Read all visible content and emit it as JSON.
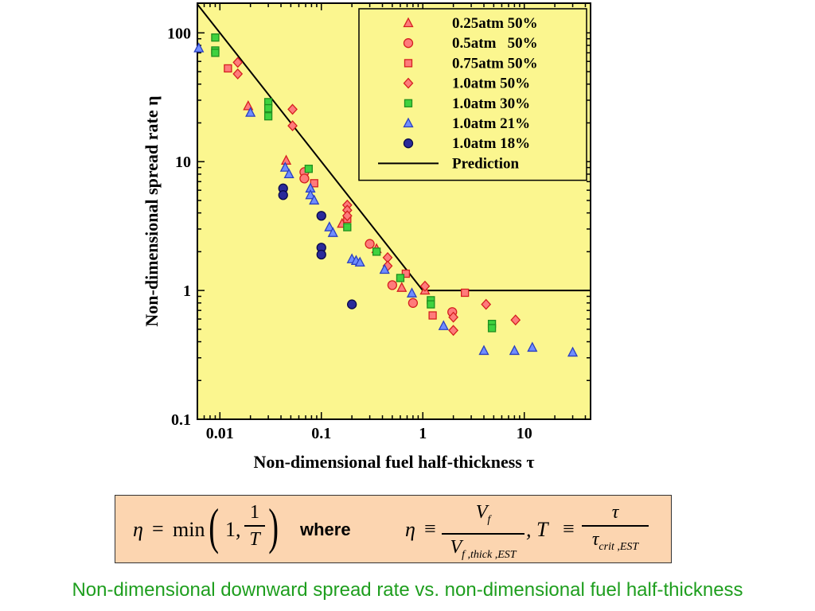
{
  "chart_data": {
    "type": "scatter",
    "xscale": "log",
    "yscale": "log",
    "xlim": [
      0.006,
      45
    ],
    "ylim": [
      0.1,
      170
    ],
    "xticks": [
      0.01,
      0.1,
      1,
      10
    ],
    "yticks": [
      0.1,
      1,
      10,
      100
    ],
    "xtick_labels": [
      "0.01",
      "0.1",
      "1",
      "10"
    ],
    "ytick_labels": [
      "0.1",
      "1",
      "10",
      "100"
    ],
    "xlabel": "Non-dimensional fuel half-thickness  τ",
    "ylabel": "Non-dimensional spread rate  η",
    "plot_background": "#fbf68f",
    "legend_position": "top-right",
    "series": [
      {
        "name": "0.25atm 50%",
        "marker": "triangle",
        "fill": "#ff7b7b",
        "stroke": "#d42020",
        "points": [
          [
            0.019,
            27
          ],
          [
            0.045,
            10.2
          ],
          [
            0.16,
            3.3
          ],
          [
            0.35,
            2.1
          ],
          [
            0.62,
            1.05
          ],
          [
            1.05,
            1.0
          ]
        ]
      },
      {
        "name": "0.5atm   50%",
        "marker": "circle",
        "fill": "#ff7b7b",
        "stroke": "#d42020",
        "points": [
          [
            0.068,
            8.3
          ],
          [
            0.068,
            7.4
          ],
          [
            0.3,
            2.3
          ],
          [
            0.5,
            1.1
          ],
          [
            0.8,
            0.8
          ],
          [
            1.95,
            0.68
          ]
        ]
      },
      {
        "name": "0.75atm 50%",
        "marker": "square",
        "fill": "#ff7b7b",
        "stroke": "#d42020",
        "points": [
          [
            0.012,
            53
          ],
          [
            0.085,
            6.8
          ],
          [
            0.18,
            3.6
          ],
          [
            0.68,
            1.35
          ],
          [
            1.25,
            0.64
          ],
          [
            2.6,
            0.96
          ]
        ]
      },
      {
        "name": "1.0atm 50%",
        "marker": "diamond",
        "fill": "#ff7b7b",
        "stroke": "#d42020",
        "points": [
          [
            0.015,
            59
          ],
          [
            0.015,
            48
          ],
          [
            0.052,
            25.5
          ],
          [
            0.052,
            19
          ],
          [
            0.18,
            4.6
          ],
          [
            0.18,
            4.2
          ],
          [
            0.18,
            3.8
          ],
          [
            0.45,
            1.8
          ],
          [
            0.45,
            1.55
          ],
          [
            1.05,
            1.08
          ],
          [
            2.0,
            0.62
          ],
          [
            2.0,
            0.49
          ],
          [
            4.2,
            0.78
          ],
          [
            8.2,
            0.59
          ]
        ]
      },
      {
        "name": "1.0atm 30%",
        "marker": "square",
        "fill": "#3fd23f",
        "stroke": "#1f8f1f",
        "points": [
          [
            0.009,
            92
          ],
          [
            0.009,
            73
          ],
          [
            0.009,
            70
          ],
          [
            0.03,
            29
          ],
          [
            0.03,
            26
          ],
          [
            0.03,
            22.5
          ],
          [
            0.075,
            8.8
          ],
          [
            0.18,
            3.1
          ],
          [
            0.35,
            2.0
          ],
          [
            0.6,
            1.25
          ],
          [
            1.2,
            0.84
          ],
          [
            1.2,
            0.78
          ],
          [
            4.8,
            0.55
          ],
          [
            4.8,
            0.51
          ]
        ]
      },
      {
        "name": "1.0atm 21%",
        "marker": "triangle",
        "fill": "#6f8dff",
        "stroke": "#2a3fc0",
        "points": [
          [
            0.0062,
            76
          ],
          [
            0.02,
            24
          ],
          [
            0.044,
            9
          ],
          [
            0.048,
            8
          ],
          [
            0.078,
            6.2
          ],
          [
            0.078,
            5.5
          ],
          [
            0.085,
            5
          ],
          [
            0.12,
            3.1
          ],
          [
            0.13,
            2.8
          ],
          [
            0.2,
            1.75
          ],
          [
            0.22,
            1.7
          ],
          [
            0.24,
            1.65
          ],
          [
            0.42,
            1.45
          ],
          [
            0.78,
            0.95
          ],
          [
            1.6,
            0.53
          ],
          [
            4.0,
            0.34
          ],
          [
            8.0,
            0.34
          ],
          [
            12.0,
            0.36
          ],
          [
            30.0,
            0.33
          ]
        ]
      },
      {
        "name": "1.0atm 18%",
        "marker": "circle",
        "fill": "#2a2a9a",
        "stroke": "#0a0a4a",
        "points": [
          [
            0.042,
            6.2
          ],
          [
            0.042,
            5.5
          ],
          [
            0.1,
            3.8
          ],
          [
            0.1,
            2.15
          ],
          [
            0.1,
            1.9
          ],
          [
            0.2,
            0.78
          ]
        ]
      }
    ],
    "prediction": {
      "name": "Prediction",
      "line_color": "#000000",
      "points": [
        [
          0.006,
          166.7
        ],
        [
          1,
          1
        ],
        [
          45,
          1
        ]
      ]
    }
  },
  "formula": {
    "eta": "η",
    "equals": "=",
    "min": "min",
    "one_comma": "1,",
    "one": "1",
    "T": "T",
    "where": "where",
    "eta2": "η",
    "equiv": "≡",
    "Vf_num": "V",
    "f_sub": "f",
    "V_den": "V",
    "den_sub": "f ,thick ,EST",
    "comma_T": ",  T",
    "equiv2": "≡",
    "tau": "τ",
    "tau_den": "τ",
    "tau_sub": "crit ,EST"
  },
  "caption": "Non-dimensional downward spread rate vs. non-dimensional fuel half-thickness"
}
